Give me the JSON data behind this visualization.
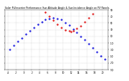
{
  "title": "Solar PV/Inverter Performance Sun Altitude Angle & Sun Incidence Angle on PV Panels",
  "title_fontsize": 2.2,
  "background_color": "#ffffff",
  "grid_color": "#b0b0b0",
  "altitude_color": "#0000dd",
  "incidence_color": "#dd0000",
  "xlim_min": -4.75,
  "xlim_max": 21.5,
  "ylim_min": -90,
  "ylim_max": 90,
  "altitude_x": [
    -3.5,
    -2.5,
    -1.5,
    -0.5,
    0.5,
    1.5,
    2.5,
    3.5,
    4.5,
    5.5,
    6.5,
    7.5,
    8.5,
    9.5,
    10.5,
    11.5,
    12.5,
    13.5,
    14.5,
    15.5,
    16.5,
    17.5,
    18.5,
    19.5,
    20.5
  ],
  "altitude_y": [
    -30,
    -18,
    -6,
    5,
    16,
    27,
    37,
    46,
    54,
    60,
    64,
    66,
    64,
    60,
    52,
    43,
    32,
    21,
    10,
    -1,
    -12,
    -24,
    -36,
    -48,
    -58
  ],
  "incidence_x": [
    5.5,
    6.5,
    7.5,
    8.5,
    9.5,
    10.5,
    11.5,
    12.0,
    12.5,
    13.5,
    14.5,
    15.5,
    16.5,
    17.5
  ],
  "incidence_y": [
    82,
    70,
    58,
    47,
    37,
    30,
    26,
    25,
    26,
    33,
    42,
    53,
    66,
    79
  ],
  "tick_x": [
    -4,
    -2,
    0,
    2,
    4,
    6,
    8,
    10,
    12,
    14,
    16,
    18,
    20
  ],
  "tick_y": [
    -90,
    -70,
    -50,
    -30,
    -10,
    10,
    30,
    50,
    70,
    90
  ],
  "tick_y_labels": [
    "-90",
    "-70",
    "-50",
    "-30",
    "-10",
    "10",
    "30",
    "50",
    "70",
    "90"
  ]
}
